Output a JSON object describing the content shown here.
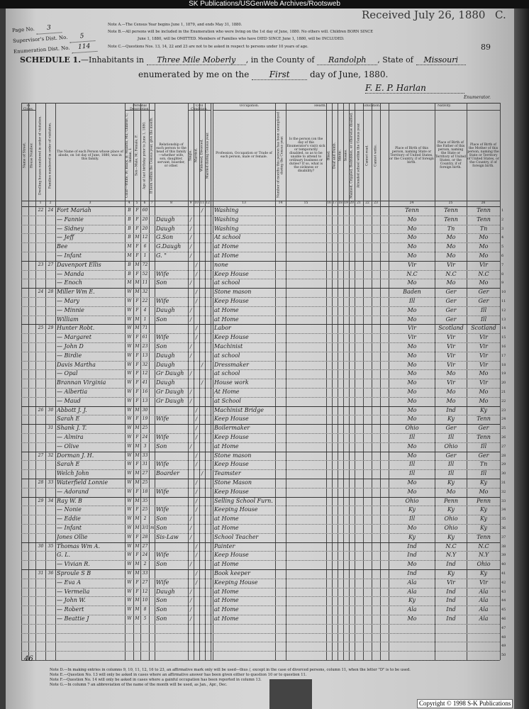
{
  "watermark": "SK Publications/USGenWeb Archives/Rootsweb",
  "received_stamp": "Received July 26, 1880",
  "corner_letter": "C.",
  "page_number": "89",
  "left_header": {
    "page_no_label": "Page No.",
    "page_no": "3",
    "supervisor_label": "Supervisor's Dist. No.",
    "supervisor": "5",
    "enumeration_label": "Enumeration Dist. No.",
    "enumeration": "114"
  },
  "notes": [
    "Note A.—The Census Year begins June 1, 1879, and ends May 31, 1880.",
    "Note B.—All persons will be included in the Enumeration who were living on the 1st day of June, 1880. No others will. Children BORN SINCE",
    "June 1, 1880, will be OMITTED. Members of Families who have DIED SINCE June 1, 1880, will be INCLUDED.",
    "Note C.—Questions Nos. 13, 14, 22 and 23 are not to be asked in respect to persons under 10 years of age."
  ],
  "schedule": {
    "title": "SCHEDULE 1.",
    "inhabitants_label": "—Inhabitants in",
    "place": "Three Mile Moberly",
    "county_label": ", in the County of",
    "county": "Randolph",
    "state_label": ", State of",
    "state": "Missouri",
    "enumerated_label": "enumerated by me on the",
    "day": "First",
    "day_suffix": "day of June, 1880.",
    "enumerator_signature": "F. E. P. Harlan",
    "enumerator_label": "Enumerator."
  },
  "column_headers": {
    "in_cities": "In Cities.",
    "street": "Name of Street.",
    "house": "House Number.",
    "dwelling": "Dwelling houses numbered in order of visitation.",
    "family": "Families numbered in order of visitation.",
    "name": "The Name of each Person whose place of abode, on 1st day of June, 1880, was in this family.",
    "personal": "Personal Description.",
    "color": "Color—White, W; Black, B; Mulatto, Mu; Chinese, C; Indian, I.",
    "sex": "Sex—Male, M; Female, F.",
    "age": "Age at last birthday prior to June 1, 1880.",
    "month": "If born within the Census year, give the month.",
    "relation": "Relationship of each person to the head of this family—whether wife, son, daughter, servant, boarder, or other.",
    "civil": "Civil Condition.",
    "single": "Single.",
    "married": "Married.",
    "widowed": "Widowed, Divorced.",
    "married_year": "Married during Census year.",
    "occupation_group": "Occupation.",
    "occupation": "Profession, Occupation or Trade of each person, male or female.",
    "unemployed": "Number of months this person has been unemployed during the Census year.",
    "health": "Health.",
    "sick": "Is the person (on the day of the Enumerator's visit) sick or temporarily disabled, so as to be unable to attend to ordinary business or duties? If so, what is the sickness or disability?",
    "blind": "Blind.",
    "deaf": "Deaf and Dumb.",
    "idiotic": "Idiotic.",
    "insane": "Insane.",
    "maimed": "Maimed, Crippled, Bedridden, or otherwise disabled.",
    "education": "Education.",
    "school": "Attended school within the Census year.",
    "read": "Cannot read.",
    "write": "Cannot write.",
    "nativity": "Nativity.",
    "birth": "Place of Birth of this person, naming State or Territory of United States, or the Country, if of foreign birth.",
    "father": "Place of Birth of the Father of this person, naming the State or Territory of United States, or the Country, if of foreign birth.",
    "mother": "Place of Birth of the Mother of this person, naming the State or Territory of United States, or the Country, if of foreign birth."
  },
  "column_numbers": [
    "1",
    "2",
    "3",
    "4",
    "5",
    "6",
    "7",
    "8",
    "9",
    "10",
    "11",
    "12",
    "13",
    "14",
    "15",
    "16",
    "17",
    "18",
    "19",
    "20",
    "21",
    "22",
    "23",
    "24",
    "25",
    "26"
  ],
  "rows": [
    {
      "dw": "22",
      "fam": "24",
      "name": "Fort Mariah",
      "color": "B",
      "sex": "F",
      "age": "60",
      "rel": "",
      "civil": "widowed",
      "occ": "Washing",
      "b": "Tenn",
      "f": "Tenn",
      "m": "Tenn"
    },
    {
      "dw": "",
      "fam": "",
      "name": "— Fannie",
      "color": "B",
      "sex": "F",
      "age": "20",
      "rel": "Daugh",
      "civil": "single",
      "occ": "Washing",
      "b": "Mo",
      "f": "Tenn",
      "m": "Tenn"
    },
    {
      "dw": "",
      "fam": "",
      "name": "— Sidney",
      "color": "B",
      "sex": "F",
      "age": "20",
      "rel": "Daugh",
      "civil": "single",
      "occ": "Washing",
      "b": "Mo",
      "f": "Tn",
      "m": "Tn"
    },
    {
      "dw": "",
      "fam": "",
      "name": "— Jeff",
      "color": "B",
      "sex": "M",
      "age": "12",
      "rel": "G.Son",
      "civil": "single",
      "occ": "At school",
      "b": "Mo",
      "f": "Mo",
      "m": "Mo"
    },
    {
      "dw": "",
      "fam": "",
      "name": "Bee",
      "color": "M",
      "sex": "F",
      "age": "6",
      "rel": "G.Daugh",
      "civil": "single",
      "occ": "at Home",
      "b": "Mo",
      "f": "Mo",
      "m": "Mo"
    },
    {
      "dw": "",
      "fam": "",
      "name": "— Infant",
      "color": "M",
      "sex": "F",
      "age": "1",
      "rel": "G. \"",
      "civil": "single",
      "occ": "at Home",
      "b": "Mo",
      "f": "Mo",
      "m": "Mo"
    },
    {
      "dw": "23",
      "fam": "27",
      "name": "Davenport Ellis",
      "color": "B",
      "sex": "M",
      "age": "72",
      "rel": "",
      "civil": "married",
      "occ": "none",
      "b": "Vir",
      "f": "Vir",
      "m": "Vir"
    },
    {
      "dw": "",
      "fam": "",
      "name": "— Manda",
      "color": "B",
      "sex": "F",
      "age": "52",
      "rel": "Wife",
      "civil": "married",
      "occ": "Keep House",
      "b": "N.C",
      "f": "N.C",
      "m": "N.C"
    },
    {
      "dw": "",
      "fam": "",
      "name": "— Enoch",
      "color": "M",
      "sex": "M",
      "age": "11",
      "rel": "Son",
      "civil": "single",
      "occ": "at school",
      "b": "Mo",
      "f": "Mo",
      "m": "Mo"
    },
    {
      "dw": "24",
      "fam": "28",
      "name": "Miller Wm E.",
      "color": "W",
      "sex": "M",
      "age": "32",
      "rel": "",
      "civil": "married",
      "occ": "Stone mason",
      "b": "Baden",
      "f": "Ger",
      "m": "Ger"
    },
    {
      "dw": "",
      "fam": "",
      "name": "— Mary",
      "color": "W",
      "sex": "F",
      "age": "22",
      "rel": "Wife",
      "civil": "married",
      "occ": "Keep House",
      "b": "Ill",
      "f": "Ger",
      "m": "Ger"
    },
    {
      "dw": "",
      "fam": "",
      "name": "— Minnie",
      "color": "W",
      "sex": "F",
      "age": "4",
      "rel": "Daugh",
      "civil": "single",
      "occ": "at Home",
      "b": "Mo",
      "f": "Ger",
      "m": "Ill"
    },
    {
      "dw": "",
      "fam": "",
      "name": "William",
      "color": "W",
      "sex": "M",
      "age": "1",
      "rel": "Son",
      "civil": "single",
      "occ": "at Home",
      "b": "Mo",
      "f": "Ger",
      "m": "Ill"
    },
    {
      "dw": "25",
      "fam": "29",
      "name": "Hunter Robt.",
      "color": "W",
      "sex": "M",
      "age": "71",
      "rel": "",
      "civil": "married",
      "occ": "Labor",
      "b": "Vir",
      "f": "Scotland",
      "m": "Scotland"
    },
    {
      "dw": "",
      "fam": "",
      "name": "— Margaret",
      "color": "W",
      "sex": "F",
      "age": "61",
      "rel": "Wife",
      "civil": "married",
      "occ": "Keep House",
      "b": "Vir",
      "f": "Vir",
      "m": "Vir"
    },
    {
      "dw": "",
      "fam": "",
      "name": "— John D",
      "color": "W",
      "sex": "M",
      "age": "23",
      "rel": "Son",
      "civil": "single",
      "occ": "Machinist",
      "b": "Mo",
      "f": "Vir",
      "m": "Vir"
    },
    {
      "dw": "",
      "fam": "",
      "name": "— Birdie",
      "color": "W",
      "sex": "F",
      "age": "13",
      "rel": "Daugh",
      "civil": "single",
      "occ": "at school",
      "b": "Mo",
      "f": "Vir",
      "m": "Vir"
    },
    {
      "dw": "",
      "fam": "",
      "name": "Davis Martha",
      "color": "W",
      "sex": "F",
      "age": "32",
      "rel": "Daugh",
      "civil": "widowed",
      "occ": "Dressmaker",
      "b": "Mo",
      "f": "Vir",
      "m": "Vir"
    },
    {
      "dw": "",
      "fam": "",
      "name": "— Opal",
      "color": "W",
      "sex": "F",
      "age": "12",
      "rel": "Gr Daugh",
      "civil": "single",
      "occ": "at school",
      "b": "Mo",
      "f": "Mo",
      "m": "Mo"
    },
    {
      "dw": "",
      "fam": "",
      "name": "Brannan Virginia",
      "color": "W",
      "sex": "F",
      "age": "41",
      "rel": "Daugh",
      "civil": "widowed",
      "occ": "House work",
      "b": "Mo",
      "f": "Vir",
      "m": "Vir"
    },
    {
      "dw": "",
      "fam": "",
      "name": "— Albertia",
      "color": "W",
      "sex": "F",
      "age": "16",
      "rel": "Gr Daugh",
      "civil": "single",
      "occ": "At Home",
      "b": "Mo",
      "f": "Mo",
      "m": "Mo"
    },
    {
      "dw": "",
      "fam": "",
      "name": "— Maud",
      "color": "W",
      "sex": "F",
      "age": "13",
      "rel": "Gr Daugh",
      "civil": "single",
      "occ": "at School",
      "b": "Mo",
      "f": "Mo",
      "m": "Mo"
    },
    {
      "dw": "26",
      "fam": "30",
      "name": "Abbott J. J.",
      "color": "W",
      "sex": "M",
      "age": "30",
      "rel": "",
      "civil": "married",
      "occ": "Machinist Bridge",
      "b": "Mo",
      "f": "Ind",
      "m": "Ky"
    },
    {
      "dw": "",
      "fam": "",
      "name": "Sarah E",
      "color": "W",
      "sex": "F",
      "age": "19",
      "rel": "Wife",
      "civil": "married",
      "occ": "Keep House",
      "b": "Mo",
      "f": "Ky",
      "m": "Tenn"
    },
    {
      "dw": "",
      "fam": "31",
      "name": "Shank J. T.",
      "color": "W",
      "sex": "M",
      "age": "25",
      "rel": "",
      "civil": "married",
      "occ": "Boilermaker",
      "b": "Ohio",
      "f": "Ger",
      "m": "Ger"
    },
    {
      "dw": "",
      "fam": "",
      "name": "— Almira",
      "color": "W",
      "sex": "F",
      "age": "24",
      "rel": "Wife",
      "civil": "married",
      "occ": "Keep House",
      "b": "Ill",
      "f": "Ill",
      "m": "Tenn"
    },
    {
      "dw": "",
      "fam": "",
      "name": "— Olive",
      "color": "W",
      "sex": "M",
      "age": "3",
      "rel": "Son",
      "civil": "single",
      "occ": "at Home",
      "b": "Mo",
      "f": "Ohio",
      "m": "Ill"
    },
    {
      "dw": "27",
      "fam": "32",
      "name": "Dorman J. H.",
      "color": "W",
      "sex": "M",
      "age": "33",
      "rel": "",
      "civil": "married",
      "occ": "Stone mason",
      "b": "Mo",
      "f": "Ger",
      "m": "Ger"
    },
    {
      "dw": "",
      "fam": "",
      "name": "Sarah E",
      "color": "W",
      "sex": "F",
      "age": "31",
      "rel": "Wife",
      "civil": "married",
      "occ": "Keep House",
      "b": "Ill",
      "f": "Ill",
      "m": "Tn"
    },
    {
      "dw": "",
      "fam": "",
      "name": "Welch John",
      "color": "W",
      "sex": "M",
      "age": "27",
      "rel": "Boarder",
      "civil": "widowed",
      "occ": "Teamster",
      "b": "Ill",
      "f": "Ill",
      "m": "Ill"
    },
    {
      "dw": "28",
      "fam": "33",
      "name": "Waterfield Lonnie",
      "color": "W",
      "sex": "M",
      "age": "25",
      "rel": "",
      "civil": "married",
      "occ": "Stone Mason",
      "b": "Mo",
      "f": "Ky",
      "m": "Ky"
    },
    {
      "dw": "",
      "fam": "",
      "name": "— Adorand",
      "color": "W",
      "sex": "F",
      "age": "18",
      "rel": "Wife",
      "civil": "married",
      "occ": "Keep House",
      "b": "Mo",
      "f": "Mo",
      "m": "Mo"
    },
    {
      "dw": "29",
      "fam": "34",
      "name": "Ray W. B",
      "color": "W",
      "sex": "M",
      "age": "35",
      "rel": "",
      "civil": "married",
      "occ": "Selling School Furn.",
      "b": "Ohio",
      "f": "Penn",
      "m": "Penn"
    },
    {
      "dw": "",
      "fam": "",
      "name": "— Nonie",
      "color": "W",
      "sex": "F",
      "age": "25",
      "rel": "Wife",
      "civil": "married",
      "occ": "Keeping House",
      "b": "Ky",
      "f": "Ky",
      "m": "Ky"
    },
    {
      "dw": "",
      "fam": "",
      "name": "— Eddie",
      "color": "W",
      "sex": "M",
      "age": "2",
      "rel": "Son",
      "civil": "single",
      "occ": "at Home",
      "b": "Ill",
      "f": "Ohio",
      "m": "Ky"
    },
    {
      "dw": "",
      "fam": "",
      "name": "— Infant",
      "color": "W",
      "sex": "M",
      "age": "3/12",
      "month": "mo",
      "rel": "Son",
      "civil": "single",
      "occ": "at Home",
      "b": "Mo",
      "f": "Ohio",
      "m": "Ky"
    },
    {
      "dw": "",
      "fam": "",
      "name": "Jones Ollie",
      "color": "W",
      "sex": "F",
      "age": "28",
      "rel": "Sis-Law",
      "civil": "single",
      "occ": "School Teacher",
      "b": "Ky",
      "f": "Ky",
      "m": "Tenn"
    },
    {
      "dw": "30",
      "fam": "35",
      "name": "Thomas Wm A.",
      "color": "W",
      "sex": "M",
      "age": "27",
      "rel": "",
      "civil": "married",
      "occ": "Painter",
      "b": "Ind",
      "f": "N.C",
      "m": "N.C"
    },
    {
      "dw": "",
      "fam": "",
      "name": "G. L.",
      "color": "W",
      "sex": "F",
      "age": "24",
      "rel": "Wife",
      "civil": "married",
      "occ": "Keep House",
      "b": "Ind",
      "f": "N.Y",
      "m": "N.Y"
    },
    {
      "dw": "",
      "fam": "",
      "name": "— Vivian R.",
      "color": "W",
      "sex": "M",
      "age": "2",
      "rel": "Son",
      "civil": "single",
      "occ": "at Home",
      "b": "Mo",
      "f": "Ind",
      "m": "Ohio"
    },
    {
      "dw": "31",
      "fam": "36",
      "name": "Sproule S B",
      "color": "W",
      "sex": "M",
      "age": "33",
      "rel": "",
      "civil": "married",
      "occ": "Book keeper",
      "b": "Ind",
      "f": "Ky",
      "m": "Ky"
    },
    {
      "dw": "",
      "fam": "",
      "name": "— Eva A",
      "color": "W",
      "sex": "F",
      "age": "27",
      "rel": "Wife",
      "civil": "married",
      "occ": "Keeping House",
      "b": "Ala",
      "f": "Vir",
      "m": "Vir"
    },
    {
      "dw": "",
      "fam": "",
      "name": "— Vermelia",
      "color": "W",
      "sex": "F",
      "age": "12",
      "rel": "Daugh",
      "civil": "single",
      "occ": "at Home",
      "b": "Ala",
      "f": "Ind",
      "m": "Ala"
    },
    {
      "dw": "",
      "fam": "",
      "name": "— John W.",
      "color": "W",
      "sex": "M",
      "age": "10",
      "rel": "Son",
      "civil": "single",
      "occ": "at Home",
      "b": "Ky",
      "f": "Ind",
      "m": "Ala"
    },
    {
      "dw": "",
      "fam": "",
      "name": "— Robert",
      "color": "W",
      "sex": "M",
      "age": "8",
      "rel": "Son",
      "civil": "single",
      "occ": "at Home",
      "b": "Ala",
      "f": "Ind",
      "m": "Ala"
    },
    {
      "dw": "",
      "fam": "",
      "name": "— Beattie J",
      "color": "W",
      "sex": "M",
      "age": "5",
      "rel": "Son",
      "civil": "single",
      "occ": "at Home",
      "b": "Mo",
      "f": "Ind",
      "m": "Ala"
    }
  ],
  "tally_mark": "46",
  "footer_notes": [
    "Note D.—In making entries in columns 9, 10, 11, 12, 16 to 23, an affirmative mark only will be used—thus /, except in the case of divorced persons, column 11, when the letter \"D\" is to be used.",
    "Note E.—Question No. 13 will only be asked in cases where an affirmative answer has been given either to question 10 or to question 11.",
    "Note F.—Question No. 14 will only be asked in cases where a gainful occupation has been reported in column 13.",
    "Note G.—In column 7 an abbreviation of the name of the month will be used, as Jan., Apr., Dec."
  ],
  "copyright": "Copyright © 1998 S-K Publications"
}
